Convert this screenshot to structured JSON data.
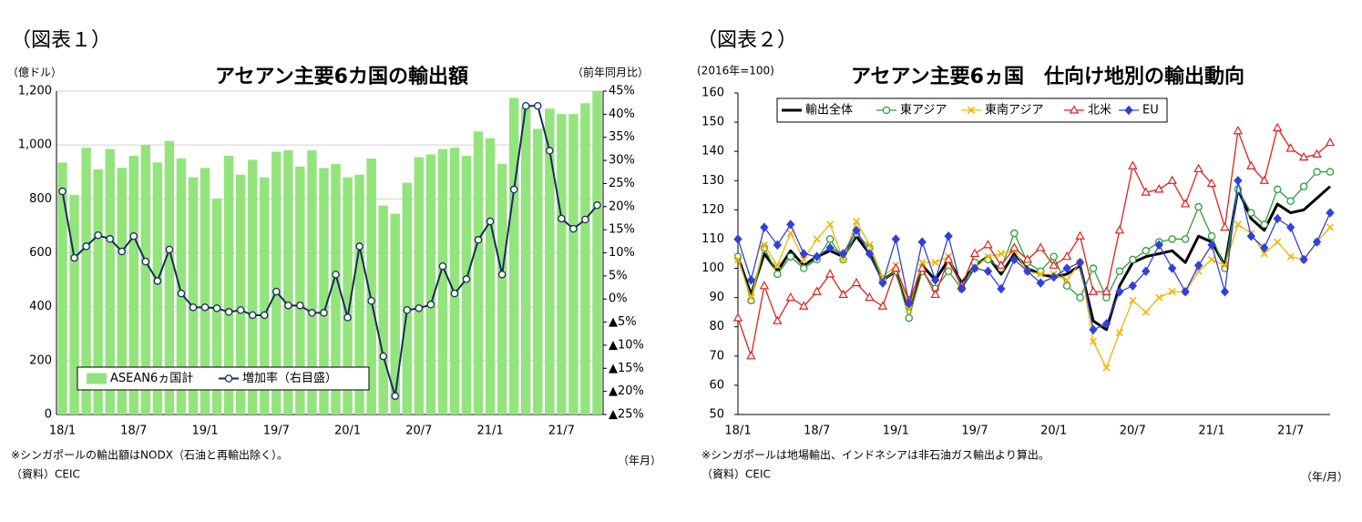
{
  "chart_data": [
    {
      "type": "combo",
      "label": "（図表１）",
      "title": "アセアン主要6カ国の輸出額",
      "unit_left": "（億ドル）",
      "unit_right": "（前年同月比）",
      "xlabel": "（年月）",
      "note": "※シンガポールの輸出額はNODX（石油と再輸出除く）。",
      "source": "（資料）CEIC",
      "categories": [
        "18/1",
        null,
        null,
        null,
        null,
        null,
        "18/7",
        null,
        null,
        null,
        null,
        null,
        "19/1",
        null,
        null,
        null,
        null,
        null,
        "19/7",
        null,
        null,
        null,
        null,
        null,
        "20/1",
        null,
        null,
        null,
        null,
        null,
        "20/7",
        null,
        null,
        null,
        null,
        null,
        "21/1",
        null,
        null,
        null,
        null,
        null,
        "21/7",
        null,
        null,
        null
      ],
      "series": [
        {
          "name": "ASEAN6ヵ国計",
          "kind": "bar",
          "color": "#93e47c",
          "values": [
            935,
            815,
            990,
            910,
            985,
            915,
            960,
            1000,
            935,
            1015,
            950,
            880,
            915,
            800,
            960,
            890,
            945,
            880,
            975,
            980,
            920,
            980,
            915,
            930,
            880,
            890,
            950,
            775,
            745,
            860,
            955,
            965,
            985,
            990,
            960,
            1050,
            1025,
            930,
            1175,
            1140,
            1060,
            1135,
            1115,
            1115,
            1155,
            1200
          ]
        },
        {
          "name": "増加率（右目盛）",
          "kind": "line",
          "axis": "y2",
          "color": "#1c2a5c",
          "marker": "circle",
          "values": [
            23.3,
            8.9,
            11.4,
            13.8,
            13.0,
            10.3,
            13.6,
            8.1,
            3.9,
            10.7,
            1.2,
            -1.8,
            -1.8,
            -2.0,
            -2.8,
            -2.4,
            -3.5,
            -3.5,
            1.6,
            -1.4,
            -1.4,
            -3.0,
            -3.0,
            5.3,
            -4.0,
            11.4,
            -0.4,
            -12.4,
            -21.0,
            -2.4,
            -2.0,
            -1.2,
            7.1,
            1.2,
            4.3,
            12.8,
            16.8,
            5.3,
            23.7,
            41.8,
            41.8,
            32.1,
            17.4,
            15.2,
            17.2,
            20.3
          ]
        }
      ],
      "ylim": [
        0,
        1200
      ],
      "yticks": [
        0,
        200,
        400,
        600,
        800,
        {
          "value": 1000,
          "label": "1,000"
        },
        {
          "value": 1200,
          "label": "1,200"
        }
      ],
      "y2lim": [
        -25,
        45
      ],
      "y2ticks": [
        {
          "value": -25,
          "label": "▲25%"
        },
        {
          "value": -20,
          "label": "▲20%"
        },
        {
          "value": -15,
          "label": "▲15%"
        },
        {
          "value": -10,
          "label": "▲10%"
        },
        {
          "value": -5,
          "label": "▲5%"
        },
        {
          "value": 0,
          "label": "0%"
        },
        {
          "value": 5,
          "label": "5%"
        },
        {
          "value": 10,
          "label": "10%"
        },
        {
          "value": 15,
          "label": "15%"
        },
        {
          "value": 20,
          "label": "20%"
        },
        {
          "value": 25,
          "label": "25%"
        },
        {
          "value": 30,
          "label": "30%"
        },
        {
          "value": 35,
          "label": "35%"
        },
        {
          "value": 40,
          "label": "40%"
        },
        {
          "value": 45,
          "label": "45%"
        }
      ],
      "grid": true,
      "legend": "bottom-left"
    },
    {
      "type": "line",
      "label": "（図表２）",
      "title": "アセアン主要6ヵ国　仕向け地別の輸出動向",
      "unit_left": "(2016年=100)",
      "xlabel": "（年/月）",
      "note": "※シンガポールは地場輸出、インドネシアは非石油ガス輸出より算出。",
      "source": "（資料）CEIC",
      "categories": [
        "18/1",
        null,
        null,
        null,
        null,
        null,
        "18/7",
        null,
        null,
        null,
        null,
        null,
        "19/1",
        null,
        null,
        null,
        null,
        null,
        "19/7",
        null,
        null,
        null,
        null,
        null,
        "20/1",
        null,
        null,
        null,
        null,
        null,
        "20/7",
        null,
        null,
        null,
        null,
        null,
        "21/1",
        null,
        null,
        null,
        null,
        null,
        "21/7",
        null,
        null,
        null
      ],
      "series": [
        {
          "name": "輸出全体",
          "color": "#000000",
          "marker": "none",
          "width": 3,
          "values": [
            104,
            91,
            105,
            99,
            106,
            101,
            104,
            106,
            104,
            111,
            105,
            96,
            99,
            86,
            101,
            96,
            103,
            95,
            101,
            104,
            98,
            105,
            100,
            98,
            97,
            98,
            101,
            82,
            79,
            94,
            102,
            104,
            105,
            106,
            102,
            111,
            109,
            101,
            127,
            117,
            113,
            122,
            119,
            120,
            124,
            128
          ]
        },
        {
          "name": "東アジア",
          "color": "#2e9e3a",
          "marker": "circle",
          "width": 1.3,
          "values": [
            104,
            89,
            107,
            98,
            104,
            100,
            103,
            110,
            103,
            112,
            107,
            96,
            99,
            83,
            99,
            93,
            99,
            93,
            102,
            103,
            100,
            112,
            102,
            99,
            104,
            94,
            90,
            100,
            90,
            99,
            103,
            106,
            109,
            110,
            110,
            121,
            111,
            100,
            127,
            119,
            115,
            127,
            123,
            128,
            133,
            133
          ]
        },
        {
          "name": "東南アジア",
          "color": "#f2b600",
          "marker": "x",
          "width": 1.3,
          "values": [
            103,
            90,
            108,
            101,
            112,
            103,
            110,
            115,
            103,
            116,
            108,
            97,
            101,
            86,
            102,
            102,
            104,
            93,
            100,
            104,
            105,
            106,
            99,
            98,
            98,
            96,
            102,
            75,
            66,
            78,
            89,
            85,
            90,
            92,
            92,
            99,
            103,
            101,
            115,
            112,
            105,
            109,
            104,
            103,
            109,
            114
          ]
        },
        {
          "name": "北米",
          "color": "#e0201c",
          "marker": "triangle",
          "width": 1.3,
          "values": [
            83,
            70,
            94,
            82,
            90,
            87,
            92,
            98,
            91,
            95,
            90,
            87,
            100,
            89,
            100,
            91,
            103,
            94,
            105,
            108,
            101,
            107,
            103,
            107,
            101,
            104,
            111,
            92,
            92,
            113,
            135,
            126,
            127,
            130,
            122,
            134,
            129,
            114,
            147,
            135,
            130,
            148,
            141,
            138,
            139,
            143
          ]
        },
        {
          "name": "EU",
          "color": "#3340d8",
          "marker": "diamond",
          "width": 1.3,
          "values": [
            110,
            96,
            114,
            108,
            115,
            105,
            104,
            107,
            105,
            113,
            105,
            95,
            110,
            88,
            109,
            96,
            111,
            93,
            100,
            99,
            93,
            103,
            99,
            95,
            97,
            100,
            102,
            79,
            81,
            92,
            94,
            99,
            108,
            100,
            92,
            101,
            108,
            92,
            130,
            111,
            107,
            117,
            114,
            103,
            109,
            119
          ]
        }
      ],
      "ylim": [
        50,
        160
      ],
      "yticks": [
        50,
        60,
        70,
        80,
        90,
        100,
        110,
        120,
        130,
        140,
        150,
        160
      ],
      "grid": false,
      "legend": "top-left"
    }
  ]
}
